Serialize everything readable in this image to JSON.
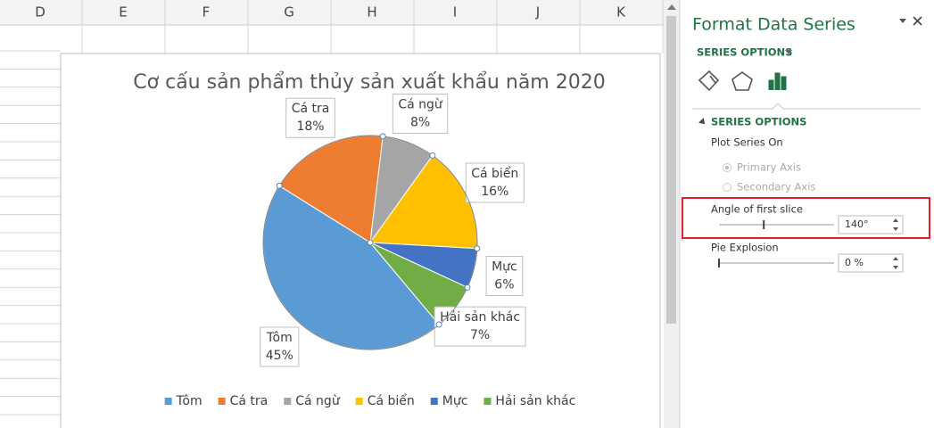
{
  "sheet": {
    "columns": [
      "D",
      "E",
      "F",
      "G",
      "H",
      "I",
      "J",
      "K"
    ]
  },
  "chart_data": {
    "type": "pie",
    "title": "Cơ cấu sản phẩm thủy sản xuất khẩu năm 2020",
    "categories": [
      "Tôm",
      "Cá tra",
      "Cá ngừ",
      "Cá biển",
      "Mực",
      "Hải sản khác"
    ],
    "values": [
      45,
      18,
      8,
      16,
      6,
      7
    ],
    "value_labels": [
      "45%",
      "18%",
      "8%",
      "16%",
      "6%",
      "7%"
    ],
    "colors": [
      "#5b9bd5",
      "#ed7d31",
      "#a5a5a5",
      "#ffc000",
      "#4472c4",
      "#70ad47"
    ],
    "legend": "bottom"
  },
  "pane": {
    "title": "Format Data Series",
    "options_menu": "SERIES OPTIONS",
    "section": "SERIES OPTIONS",
    "plot_series_on": "Plot Series On",
    "primary_axis": "Primary Axis",
    "secondary_axis": "Secondary Axis",
    "angle_label": "Angle of first slice",
    "angle_of_first_slice": {
      "value": 140,
      "label": "140°"
    },
    "explosion_label": "Pie Explosion",
    "pie_explosion": {
      "value": 0,
      "label": "0 %"
    }
  }
}
